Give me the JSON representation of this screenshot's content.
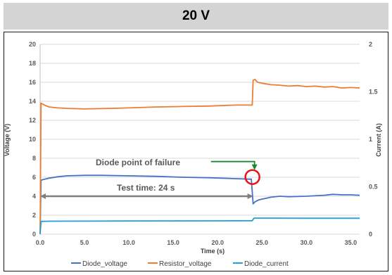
{
  "header": {
    "title": "20 V"
  },
  "chart_data": {
    "type": "line",
    "title": "",
    "xlabel": "Time (s)",
    "ylabel_left": "Voltage (V)",
    "ylabel_right": "Current (A)",
    "xlim": [
      0,
      36
    ],
    "ylim_left": [
      0,
      20
    ],
    "ylim_right": [
      0,
      2
    ],
    "x_ticks": [
      "0.0",
      "5.0",
      "10.0",
      "15.0",
      "20.0",
      "25.0",
      "30.0",
      "35.0"
    ],
    "y_left_ticks": [
      "0",
      "2",
      "4",
      "6",
      "8",
      "10",
      "12",
      "14",
      "16",
      "18",
      "20"
    ],
    "y_right_ticks": [
      "0",
      "0.5",
      "1",
      "1.5",
      "2"
    ],
    "grid": "horizontal",
    "legend_position": "bottom",
    "series": [
      {
        "name": "Diode_voltage",
        "color": "#4472c4",
        "axis": "left",
        "x": [
          0,
          0.1,
          1,
          2,
          3,
          5,
          7,
          10,
          13,
          16,
          19,
          22,
          23.5,
          23.8,
          24.0,
          24.2,
          24.6,
          25,
          26,
          27,
          28,
          30,
          32,
          33,
          34,
          35,
          36
        ],
        "y": [
          0,
          5.7,
          5.9,
          6.05,
          6.15,
          6.2,
          6.2,
          6.15,
          6.1,
          6.0,
          5.95,
          5.85,
          5.8,
          5.8,
          3.2,
          3.4,
          3.6,
          3.7,
          3.9,
          4.0,
          3.95,
          4.0,
          4.1,
          4.2,
          4.15,
          4.15,
          4.1
        ]
      },
      {
        "name": "Resistor_voltage",
        "color": "#ed7d31",
        "axis": "left",
        "x": [
          0,
          0.1,
          0.5,
          1,
          2,
          3,
          5,
          8,
          10,
          13,
          16,
          19,
          22,
          23.9,
          24.0,
          24.2,
          24.5,
          25,
          26,
          27,
          28,
          29,
          30,
          31,
          32,
          33,
          34,
          35,
          36
        ],
        "y": [
          0,
          13.8,
          13.6,
          13.4,
          13.3,
          13.25,
          13.2,
          13.25,
          13.3,
          13.4,
          13.45,
          13.5,
          13.6,
          13.6,
          16.2,
          16.3,
          16.0,
          15.9,
          15.75,
          15.7,
          15.6,
          15.65,
          15.55,
          15.6,
          15.5,
          15.55,
          15.4,
          15.45,
          15.4
        ]
      },
      {
        "name": "Diode_current",
        "color": "#1ea0dc",
        "axis": "right",
        "x": [
          0,
          0.1,
          1,
          5,
          10,
          15,
          20,
          23.9,
          24.1,
          25,
          30,
          36
        ],
        "y": [
          0,
          0.135,
          0.137,
          0.138,
          0.139,
          0.14,
          0.141,
          0.142,
          0.17,
          0.17,
          0.168,
          0.168
        ]
      }
    ],
    "annotations": [
      {
        "text": "Diode point of failure",
        "x": 24,
        "y": 5.8
      },
      {
        "text": "Test time: 24 s",
        "x_start": 0,
        "x_end": 24,
        "y": 4.0
      }
    ]
  }
}
